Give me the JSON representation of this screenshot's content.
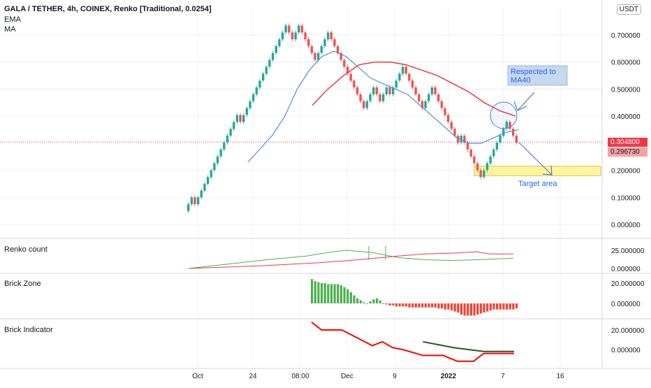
{
  "header": {
    "title": "GALA / TETHER, 4h, COINEX, Renko [Traditional, 0.0254]",
    "ema": "EMA",
    "ma": "MA",
    "currency": "USDT"
  },
  "price_tags": {
    "last": "0.304800",
    "prev": "0.296730"
  },
  "panes": {
    "renko_count": "Renko count",
    "brick_zone": "Brick Zone",
    "brick_indicator": "Brick Indicator"
  },
  "annotations": {
    "respected_line1": "Respected to",
    "respected_line2": "MA40",
    "target": "Target area"
  },
  "colors": {
    "up": "#26a69a",
    "down": "#ef5350",
    "ema": "#4a90d9",
    "ma": "#f23645",
    "zone_up": "#4caf50",
    "zone_down": "#f44336",
    "target_fill": "#fff59d"
  },
  "chart_data": {
    "type": "candlestick",
    "subtype": "renko",
    "symbol": "GALA / TETHER",
    "interval": "4h",
    "exchange": "COINEX",
    "brick_size": 0.0254,
    "x_tick_labels": [
      "Oct",
      "24",
      "08:00",
      "Dec",
      "9",
      "2022",
      "7",
      "16"
    ],
    "price_axis": {
      "ticks": [
        "0.700000",
        "0.600000",
        "0.500000",
        "0.400000",
        "0.300000",
        "0.200000",
        "0.100000",
        "0.000000"
      ],
      "range": [
        -0.02,
        0.8
      ]
    },
    "last_price": 0.3048,
    "prev_price": 0.29673,
    "renko_bricks_close": [
      0.075,
      0.1,
      0.075,
      0.1,
      0.125,
      0.15,
      0.175,
      0.2,
      0.226,
      0.251,
      0.277,
      0.302,
      0.328,
      0.353,
      0.378,
      0.404,
      0.379,
      0.404,
      0.43,
      0.455,
      0.481,
      0.506,
      0.531,
      0.557,
      0.582,
      0.608,
      0.633,
      0.659,
      0.684,
      0.709,
      0.735,
      0.709,
      0.684,
      0.709,
      0.735,
      0.709,
      0.684,
      0.659,
      0.633,
      0.608,
      0.633,
      0.659,
      0.684,
      0.709,
      0.684,
      0.659,
      0.633,
      0.608,
      0.582,
      0.557,
      0.531,
      0.506,
      0.481,
      0.455,
      0.43,
      0.455,
      0.481,
      0.506,
      0.481,
      0.455,
      0.481,
      0.506,
      0.481,
      0.506,
      0.531,
      0.557,
      0.582,
      0.557,
      0.531,
      0.506,
      0.481,
      0.455,
      0.43,
      0.455,
      0.481,
      0.506,
      0.481,
      0.455,
      0.43,
      0.404,
      0.379,
      0.353,
      0.328,
      0.302,
      0.328,
      0.302,
      0.277,
      0.251,
      0.226,
      0.2,
      0.175,
      0.2,
      0.226,
      0.251,
      0.277,
      0.302,
      0.328,
      0.353,
      0.379,
      0.353,
      0.328,
      0.302
    ],
    "ema_line": [
      [
        0.23,
        30
      ],
      [
        0.28,
        34
      ],
      [
        0.33,
        38
      ],
      [
        0.4,
        43
      ],
      [
        0.5,
        49
      ],
      [
        0.57,
        53
      ],
      [
        0.62,
        58
      ],
      [
        0.64,
        63
      ],
      [
        0.62,
        68
      ],
      [
        0.58,
        74
      ],
      [
        0.54,
        80
      ],
      [
        0.52,
        86
      ],
      [
        0.5,
        92
      ],
      [
        0.48,
        97
      ],
      [
        0.44,
        101
      ],
      [
        0.4,
        104
      ],
      [
        0.36,
        108
      ],
      [
        0.32,
        112
      ],
      [
        0.3,
        116
      ],
      [
        0.3,
        118
      ],
      [
        0.32,
        121
      ],
      [
        0.34,
        124
      ],
      [
        0.35,
        128
      ]
    ],
    "ma_line": [
      [
        0.44,
        55
      ],
      [
        0.5,
        60
      ],
      [
        0.55,
        64
      ],
      [
        0.59,
        68
      ],
      [
        0.6,
        72
      ],
      [
        0.6,
        78
      ],
      [
        0.59,
        84
      ],
      [
        0.57,
        90
      ],
      [
        0.55,
        96
      ],
      [
        0.52,
        102
      ],
      [
        0.49,
        106
      ],
      [
        0.45,
        111
      ],
      [
        0.42,
        116
      ],
      [
        0.4,
        121
      ]
    ],
    "renko_count": {
      "ticks": [
        "25.000000",
        "0.000000"
      ],
      "green": [
        [
          0,
          0
        ],
        [
          15,
          6
        ],
        [
          30,
          12
        ],
        [
          45,
          17
        ],
        [
          55,
          23
        ],
        [
          60,
          25
        ],
        [
          70,
          22
        ],
        [
          80,
          15
        ],
        [
          90,
          12
        ],
        [
          100,
          11
        ],
        [
          110,
          12
        ],
        [
          124,
          14
        ]
      ],
      "red": [
        [
          0,
          0
        ],
        [
          30,
          4
        ],
        [
          50,
          8
        ],
        [
          65,
          12
        ],
        [
          80,
          17
        ],
        [
          90,
          20
        ],
        [
          100,
          21
        ],
        [
          110,
          23
        ],
        [
          115,
          20
        ],
        [
          124,
          20
        ]
      ]
    },
    "brick_zone": {
      "ticks": [
        "20.000000",
        "0.000000"
      ],
      "values": [
        24,
        22,
        21,
        20,
        20,
        19,
        19,
        19,
        19,
        18,
        16,
        14,
        11,
        8,
        5,
        3,
        1,
        0,
        2,
        4,
        5,
        3,
        0,
        -1,
        -2,
        -2,
        -3,
        -3,
        -3,
        -3,
        -4,
        -4,
        -4,
        -4,
        -4,
        -4,
        -4,
        -4,
        -4,
        -5,
        -5,
        -6,
        -6,
        -7,
        -8,
        -9,
        -11,
        -12,
        -12,
        -12,
        -12,
        -11,
        -10,
        -9,
        -8,
        -7,
        -6,
        -6,
        -6,
        -6,
        -6,
        -6,
        -6,
        -5
      ]
    },
    "brick_indicator": {
      "ticks": [
        "20.000000",
        "0.000000"
      ],
      "red": [
        [
          0,
          28
        ],
        [
          5,
          20
        ],
        [
          15,
          20
        ],
        [
          30,
          4
        ],
        [
          35,
          8
        ],
        [
          40,
          2
        ],
        [
          45,
          0
        ],
        [
          55,
          -6
        ],
        [
          65,
          -6
        ],
        [
          72,
          -12
        ],
        [
          80,
          -12
        ],
        [
          85,
          -4
        ],
        [
          100,
          -4
        ]
      ],
      "green": [
        [
          55,
          8
        ],
        [
          70,
          2
        ],
        [
          85,
          -2
        ],
        [
          100,
          -2
        ]
      ]
    }
  }
}
